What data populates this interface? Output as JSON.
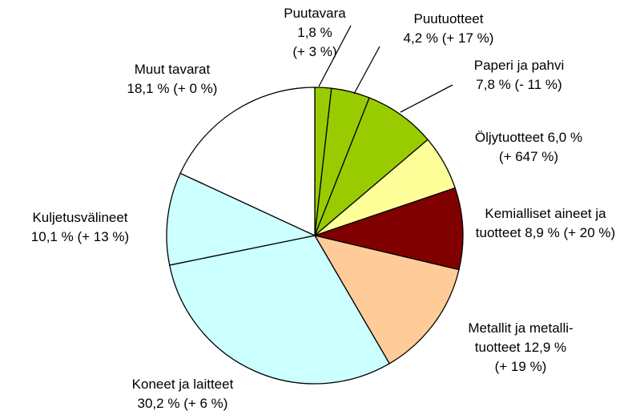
{
  "chart_data": {
    "type": "pie",
    "categories": [
      "Puutavara",
      "Puutuotteet",
      "Paperi ja pahvi",
      "Öljytuotteet",
      "Kemialliset aineet ja tuotteet",
      "Metallit ja metalli-tuotteet",
      "Koneet ja laitteet",
      "Kuljetusvälineet",
      "Muut tavarat"
    ],
    "values": [
      1.8,
      4.2,
      7.8,
      6.0,
      8.9,
      12.9,
      30.2,
      10.1,
      18.1
    ],
    "value_labels": [
      "1,8 %",
      "4,2 %",
      "7,8 %",
      "6,0 %",
      "8,9 %",
      "12,9 %",
      "30,2 %",
      "10,1 %",
      "18,1 %"
    ],
    "changes": [
      "(+ 3 %)",
      "(+ 17 %)",
      "(- 11 %)",
      "(+ 647 %)",
      "(+ 20 %)",
      "(+ 19 %)",
      "(+ 6 %)",
      "(+ 13 %)",
      "(+ 0 %)"
    ],
    "colors": [
      "#99cc00",
      "#99cc00",
      "#99cc00",
      "#ffff99",
      "#800000",
      "#ffcc99",
      "#ccffff",
      "#ccffff",
      "#ffffff"
    ]
  }
}
